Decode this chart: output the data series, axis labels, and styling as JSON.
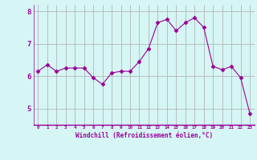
{
  "x": [
    0,
    1,
    2,
    3,
    4,
    5,
    6,
    7,
    8,
    9,
    10,
    11,
    12,
    13,
    14,
    15,
    16,
    17,
    18,
    19,
    20,
    21,
    22,
    23
  ],
  "y": [
    6.15,
    6.35,
    6.15,
    6.25,
    6.25,
    6.25,
    5.95,
    5.75,
    6.1,
    6.15,
    6.15,
    6.45,
    6.85,
    7.65,
    7.75,
    7.4,
    7.65,
    7.8,
    7.5,
    6.3,
    6.2,
    6.3,
    5.95,
    4.85
  ],
  "line_color": "#990099",
  "marker": "D",
  "marker_size": 2.5,
  "xlabel": "Windchill (Refroidissement éolien,°C)",
  "xlabel_color": "#990099",
  "background_color": "#d6f5f5",
  "grid_color": "#aaaaaa",
  "tick_color": "#990099",
  "ylim": [
    4.5,
    8.2
  ],
  "xlim": [
    -0.5,
    23.5
  ],
  "yticks": [
    5,
    6,
    7,
    8
  ],
  "xtick_labels": [
    "0",
    "1",
    "2",
    "3",
    "4",
    "5",
    "6",
    "7",
    "8",
    "9",
    "10",
    "11",
    "12",
    "13",
    "14",
    "15",
    "16",
    "17",
    "18",
    "19",
    "20",
    "21",
    "22",
    "23"
  ]
}
